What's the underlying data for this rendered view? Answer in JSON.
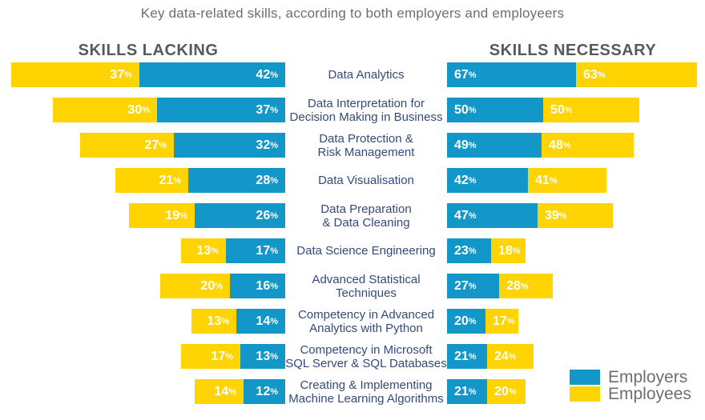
{
  "title": "Key data-related skills, according to both employers and employeers",
  "panels": {
    "left_title": "SKILLS LACKING",
    "right_title": "SKILLS NECESSARY"
  },
  "colors": {
    "employers_blue": "#1396C8",
    "employees_yellow": "#FFD400",
    "category_text": "#334A7C",
    "header_text": "#58595B",
    "muted_text": "#6D6E71"
  },
  "legend": {
    "items": [
      {
        "label": "Employers",
        "color": "#1396C8"
      },
      {
        "label": "Employees",
        "color": "#FFD400"
      }
    ]
  },
  "chart_data": {
    "type": "bar",
    "variant": "diverging-butterfly",
    "unit": "%",
    "title": "Key data-related skills, according to both employers and employeers",
    "legend_position": "bottom-right",
    "grid": false,
    "categories": [
      "Data Analytics",
      "Data Interpretation for Decision Making in Business",
      "Data Protection & Risk Management",
      "Data Visualisation",
      "Data Preparation & Data Cleaning",
      "Data Science Engineering",
      "Advanced Statistical Techniques",
      "Competency in Advanced Analytics with Python",
      "Competency in Microsoft SQL Server & SQL Databases",
      "Creating & Implementing Machine Learning Algorithms"
    ],
    "categories_display": [
      "Data Analytics",
      "Data Interpretation for\nDecision Making in Business",
      "Data Protection &\nRisk Management",
      "Data Visualisation",
      "Data Preparation\n& Data Cleaning",
      "Data Science Engineering",
      "Advanced Statistical\nTechniques",
      "Competency in Advanced\nAnalytics with Python",
      "Competency in Microsoft\nSQL Server & SQL Databases",
      "Creating & Implementing\nMachine Learning Algorithms"
    ],
    "panels": [
      {
        "title": "SKILLS LACKING",
        "side": "left",
        "series": [
          {
            "name": "Employees",
            "color": "#FFD400",
            "values": [
              37,
              30,
              27,
              21,
              19,
              13,
              20,
              13,
              17,
              14
            ]
          },
          {
            "name": "Employers",
            "color": "#1396C8",
            "values": [
              42,
              37,
              32,
              28,
              26,
              17,
              16,
              14,
              13,
              12
            ]
          }
        ]
      },
      {
        "title": "SKILLS NECESSARY",
        "side": "right",
        "series": [
          {
            "name": "Employers",
            "color": "#1396C8",
            "values": [
              67,
              50,
              49,
              42,
              47,
              23,
              27,
              20,
              21,
              21
            ]
          },
          {
            "name": "Employees",
            "color": "#FFD400",
            "values": [
              63,
              50,
              48,
              41,
              39,
              18,
              28,
              17,
              24,
              20
            ]
          }
        ]
      }
    ]
  }
}
